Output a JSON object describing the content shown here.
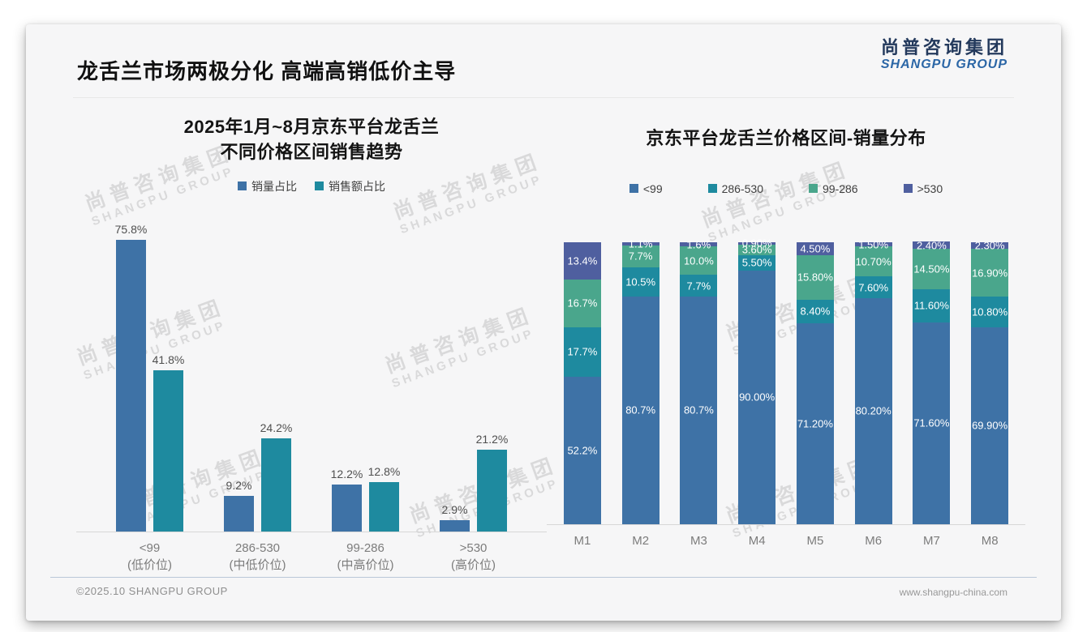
{
  "header": {
    "title": "龙舌兰市场两极分化 高端高销低价主导",
    "logo_cn": "尚普咨询集团",
    "logo_en": "SHANGPU GROUP"
  },
  "watermark": {
    "cn": "尚普咨询集团",
    "en": "SHANGPU GROUP"
  },
  "footer": {
    "left": "©2025.10 SHANGPU GROUP",
    "right": "www.shangpu-china.com"
  },
  "colors": {
    "blue": "#3e72a6",
    "teal": "#1e8a9f",
    "green": "#4aa68c",
    "indigo": "#4f5f9f",
    "logo_navy": "#23395c",
    "logo_blue": "#2b66a6",
    "footer_line": "#b9c7d8"
  },
  "chart_data": [
    {
      "type": "bar",
      "title": "2025年1月~8月京东平台龙舌兰\n不同价格区间销售趋势",
      "categories": [
        "<99\n(低价位)",
        "286-530\n(中低价位)",
        "99-286\n(中高价位)",
        ">530\n(高价位)"
      ],
      "series": [
        {
          "name": "销量占比",
          "color": "#3e72a6",
          "values": [
            75.8,
            9.2,
            12.2,
            2.9
          ],
          "labels": [
            "75.8%",
            "9.2%",
            "12.2%",
            "2.9%"
          ]
        },
        {
          "name": "销售额占比",
          "color": "#1e8a9f",
          "values": [
            41.8,
            24.2,
            12.8,
            21.2
          ],
          "labels": [
            "41.8%",
            "24.2%",
            "12.8%",
            "21.2%"
          ]
        }
      ],
      "xlabel": "",
      "ylabel": "",
      "ylim": [
        0,
        80
      ],
      "grid": false,
      "legend_position": "top"
    },
    {
      "type": "stacked-bar",
      "title": "京东平台龙舌兰价格区间-销量分布",
      "categories": [
        "M1",
        "M2",
        "M3",
        "M4",
        "M5",
        "M6",
        "M7",
        "M8"
      ],
      "series": [
        {
          "name": "<99",
          "color": "#3e72a6",
          "values": [
            52.2,
            80.7,
            80.7,
            90.0,
            71.2,
            80.2,
            71.6,
            69.9
          ],
          "labels": [
            "52.2%",
            "80.7%",
            "80.7%",
            "90.00%",
            "71.20%",
            "80.20%",
            "71.60%",
            "69.90%"
          ]
        },
        {
          "name": "286-530",
          "color": "#1e8a9f",
          "values": [
            17.7,
            10.5,
            7.7,
            5.5,
            8.4,
            7.6,
            11.6,
            10.8
          ],
          "labels": [
            "17.7%",
            "10.5%",
            "7.7%",
            "5.50%",
            "8.40%",
            "7.60%",
            "11.60%",
            "10.80%"
          ]
        },
        {
          "name": "99-286",
          "color": "#4aa68c",
          "values": [
            16.7,
            7.7,
            10.0,
            3.6,
            15.8,
            10.7,
            14.5,
            16.9
          ],
          "labels": [
            "16.7%",
            "7.7%",
            "10.0%",
            "3.60%",
            "15.80%",
            "10.70%",
            "14.50%",
            "16.90%"
          ]
        },
        {
          "name": ">530",
          "color": "#4f5f9f",
          "values": [
            13.4,
            1.1,
            1.6,
            0.9,
            4.5,
            1.5,
            2.4,
            2.3
          ],
          "labels": [
            "13.4%",
            "1.1%",
            "1.6%",
            "0.90%",
            "4.50%",
            "1.50%",
            "2.40%",
            "2.30%"
          ]
        }
      ],
      "xlabel": "",
      "ylabel": "",
      "ylim": [
        0,
        100
      ],
      "grid": false,
      "legend_position": "top"
    }
  ]
}
